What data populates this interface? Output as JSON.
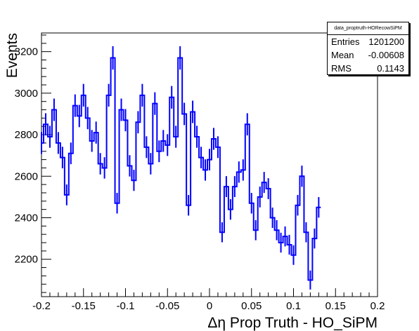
{
  "chart_data": {
    "type": "histogram",
    "title": "",
    "xlabel": "Δη Prop Truth - HO_SiPM",
    "ylabel": "Events",
    "xlim": [
      -0.2,
      0.2
    ],
    "ylim": [
      2020,
      3290
    ],
    "x_ticks": [
      "-0.2",
      "-0.15",
      "-0.1",
      "-0.05",
      "0",
      "0.05",
      "0.1",
      "0.15",
      "0.2"
    ],
    "x_tick_values": [
      -0.2,
      -0.15,
      -0.1,
      -0.05,
      0,
      0.05,
      0.1,
      0.15,
      0.2
    ],
    "y_ticks": [
      "2200",
      "2400",
      "2600",
      "2800",
      "3000",
      "3200"
    ],
    "y_tick_values": [
      2200,
      2400,
      2600,
      2800,
      3000,
      3200
    ],
    "bin_width": 0.005,
    "values": [
      2760,
      2850,
      2790,
      2920,
      2760,
      2690,
      2510,
      2710,
      2940,
      2890,
      2990,
      2880,
      2770,
      2810,
      2660,
      2640,
      2990,
      3170,
      2470,
      2920,
      2870,
      2650,
      2580,
      2860,
      2990,
      2740,
      2660,
      2950,
      2720,
      2770,
      2750,
      2980,
      2790,
      3170,
      2900,
      2460,
      2910,
      2790,
      2690,
      2630,
      2680,
      2780,
      2740,
      2330,
      2550,
      2440,
      2550,
      2620,
      2630,
      2850,
      2470,
      2340,
      2500,
      2570,
      2540,
      2400,
      2340,
      2280,
      2310,
      2270,
      2220,
      2460,
      2600,
      2330,
      2100,
      2300,
      2450
    ],
    "color": "#0000ff"
  },
  "stats_box": {
    "title": "data_proptruth-HORecowSiPM",
    "rows": [
      {
        "label": "Entries",
        "value": "1201200"
      },
      {
        "label": "Mean",
        "value": "-0.00608"
      },
      {
        "label": "RMS",
        "value": "0.1143"
      }
    ]
  }
}
